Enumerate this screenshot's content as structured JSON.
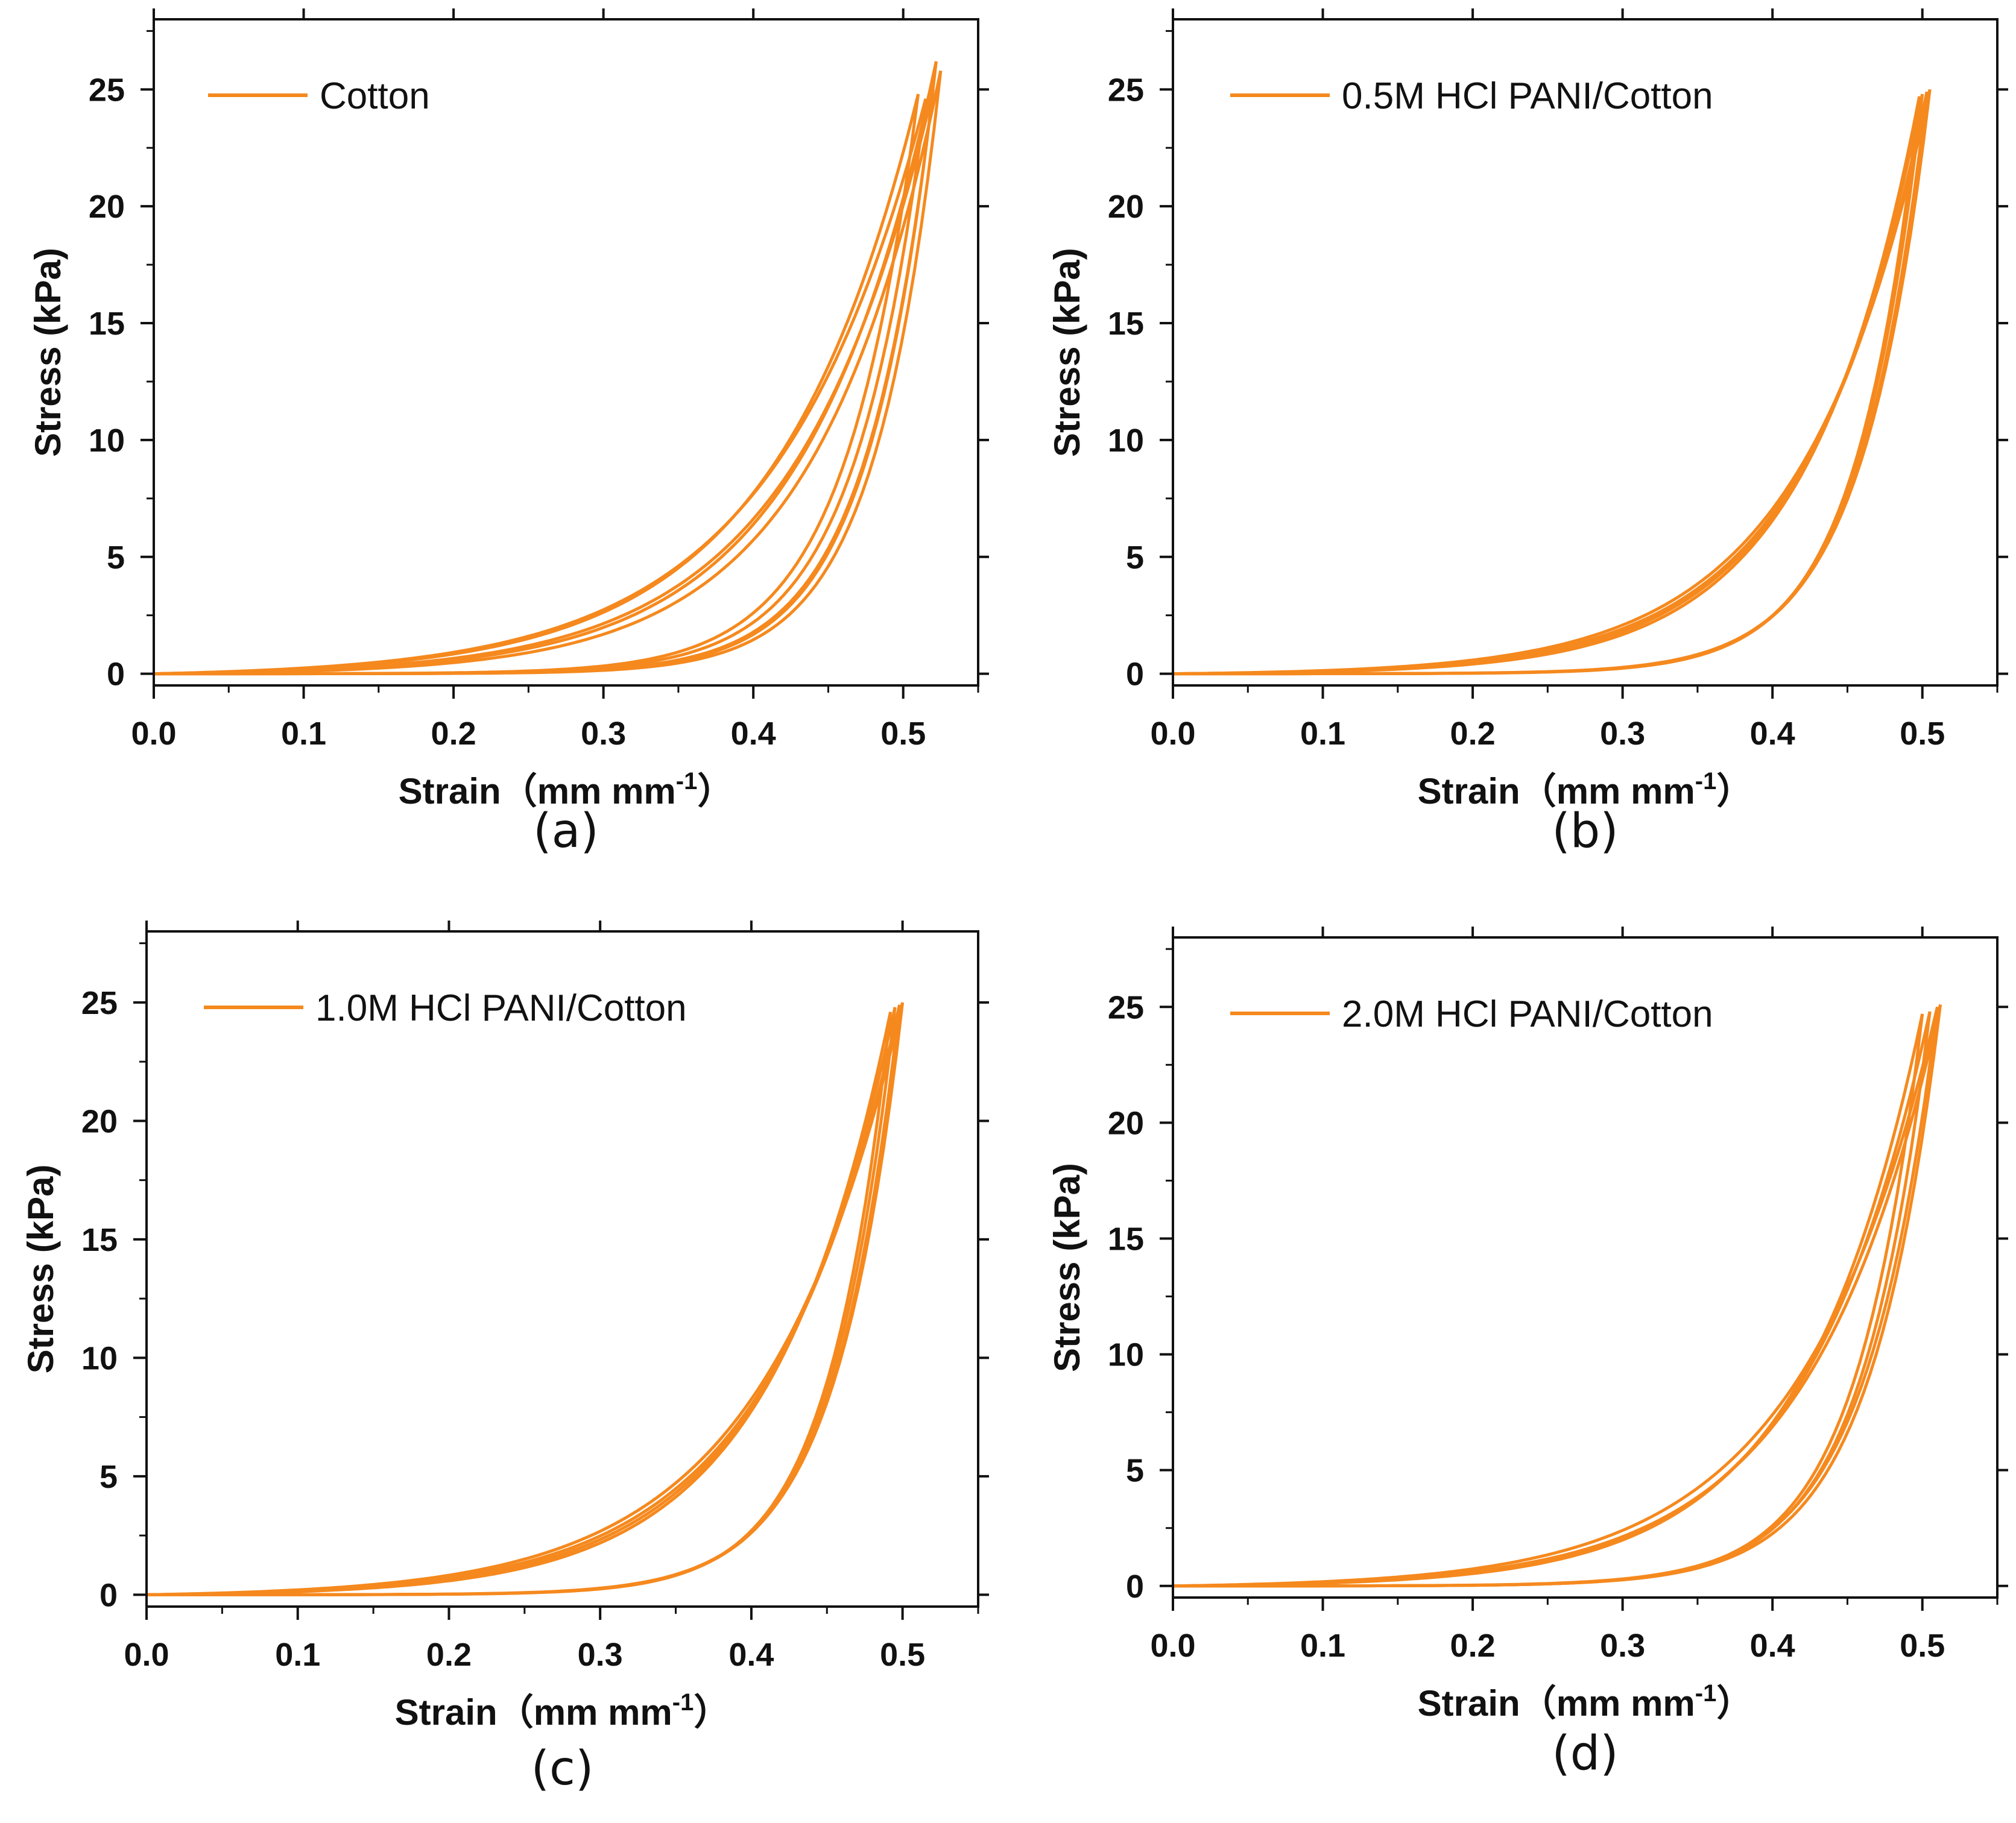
{
  "figure": {
    "line_color": "#F5891E",
    "axis_color": "#111111",
    "background": "#ffffff"
  },
  "chart_data": [
    {
      "type": "line",
      "panel_label": "(a)",
      "legend": "Cotton",
      "xlabel": "Strain（mm mm",
      "xlabel_sup": "-1",
      "xlabel_close": "）",
      "ylabel": "Stress (kPa)",
      "xlim": [
        0,
        0.55
      ],
      "ylim": [
        -0.5,
        28
      ],
      "xticks": [
        "0.0",
        "0.1",
        "0.2",
        "0.3",
        "0.4",
        "0.5"
      ],
      "yticks": [
        "0",
        "5",
        "10",
        "15",
        "20",
        "25"
      ],
      "xtick_values": [
        0,
        0.1,
        0.2,
        0.3,
        0.4,
        0.5
      ],
      "ytick_values": [
        0,
        5,
        10,
        15,
        20,
        25
      ],
      "cycles": [
        {
          "max_strain": 0.52,
          "max_stress": 25.0,
          "load_k": 11.0,
          "unload_k": 22.0
        },
        {
          "max_strain": 0.515,
          "max_stress": 24.6,
          "load_k": 10.0,
          "unload_k": 21.0
        },
        {
          "max_strain": 0.525,
          "max_stress": 25.8,
          "load_k": 12.0,
          "unload_k": 23.0
        },
        {
          "max_strain": 0.51,
          "max_stress": 24.8,
          "load_k": 10.5,
          "unload_k": 20.5
        },
        {
          "max_strain": 0.522,
          "max_stress": 26.2,
          "load_k": 11.5,
          "unload_k": 22.5
        }
      ]
    },
    {
      "type": "line",
      "panel_label": "(b)",
      "legend": "0.5M HCl PANI/Cotton",
      "xlabel": "Strain（mm mm",
      "xlabel_sup": "-1",
      "xlabel_close": "）",
      "ylabel": "Stress (kPa)",
      "xlim": [
        0,
        0.55
      ],
      "ylim": [
        -0.5,
        28
      ],
      "xticks": [
        "0.0",
        "0.1",
        "0.2",
        "0.3",
        "0.4",
        "0.5"
      ],
      "yticks": [
        "0",
        "5",
        "10",
        "15",
        "20",
        "25"
      ],
      "xtick_values": [
        0,
        0.1,
        0.2,
        0.3,
        0.4,
        0.5
      ],
      "ytick_values": [
        0,
        5,
        10,
        15,
        20,
        25
      ],
      "cycles": [
        {
          "max_strain": 0.505,
          "max_stress": 25.0,
          "load_k": 12.0,
          "unload_k": 22.0
        },
        {
          "max_strain": 0.5,
          "max_stress": 24.8,
          "load_k": 13.0,
          "unload_k": 23.0
        },
        {
          "max_strain": 0.503,
          "max_stress": 24.9,
          "load_k": 12.5,
          "unload_k": 22.5
        },
        {
          "max_strain": 0.498,
          "max_stress": 24.7,
          "load_k": 13.5,
          "unload_k": 23.5
        }
      ]
    },
    {
      "type": "line",
      "panel_label": "(c)",
      "legend": "1.0M HCl PANI/Cotton",
      "xlabel": "Strain（mm mm",
      "xlabel_sup": "-1",
      "xlabel_close": "）",
      "ylabel": "Stress (kPa)",
      "xlim": [
        0,
        0.55
      ],
      "ylim": [
        -0.5,
        28
      ],
      "xticks": [
        "0.0",
        "0.1",
        "0.2",
        "0.3",
        "0.4",
        "0.5"
      ],
      "yticks": [
        "0",
        "5",
        "10",
        "15",
        "20",
        "25"
      ],
      "xtick_values": [
        0,
        0.1,
        0.2,
        0.3,
        0.4,
        0.5
      ],
      "ytick_values": [
        0,
        5,
        10,
        15,
        20,
        25
      ],
      "cycles": [
        {
          "max_strain": 0.5,
          "max_stress": 25.0,
          "load_k": 11.0,
          "unload_k": 22.5
        },
        {
          "max_strain": 0.495,
          "max_stress": 24.8,
          "load_k": 12.0,
          "unload_k": 23.5
        },
        {
          "max_strain": 0.498,
          "max_stress": 24.9,
          "load_k": 11.5,
          "unload_k": 23.0
        },
        {
          "max_strain": 0.492,
          "max_stress": 24.6,
          "load_k": 12.5,
          "unload_k": 24.0
        }
      ]
    },
    {
      "type": "line",
      "panel_label": "(d)",
      "legend": "2.0M HCl PANI/Cotton",
      "xlabel": "Strain（mm mm",
      "xlabel_sup": "-1",
      "xlabel_close": "）",
      "ylabel": "Stress (kPa)",
      "xlim": [
        0,
        0.55
      ],
      "ylim": [
        -0.5,
        28
      ],
      "xticks": [
        "0.0",
        "0.1",
        "0.2",
        "0.3",
        "0.4",
        "0.5"
      ],
      "yticks": [
        "0",
        "5",
        "10",
        "15",
        "20",
        "25"
      ],
      "xtick_values": [
        0,
        0.1,
        0.2,
        0.3,
        0.4,
        0.5
      ],
      "ytick_values": [
        0,
        5,
        10,
        15,
        20,
        25
      ],
      "cycles": [
        {
          "max_strain": 0.51,
          "max_stress": 25.0,
          "load_k": 11.0,
          "unload_k": 21.0
        },
        {
          "max_strain": 0.505,
          "max_stress": 24.8,
          "load_k": 12.0,
          "unload_k": 22.0
        },
        {
          "max_strain": 0.512,
          "max_stress": 25.1,
          "load_k": 11.5,
          "unload_k": 21.5
        },
        {
          "max_strain": 0.5,
          "max_stress": 24.7,
          "load_k": 12.5,
          "unload_k": 22.5
        }
      ]
    }
  ]
}
